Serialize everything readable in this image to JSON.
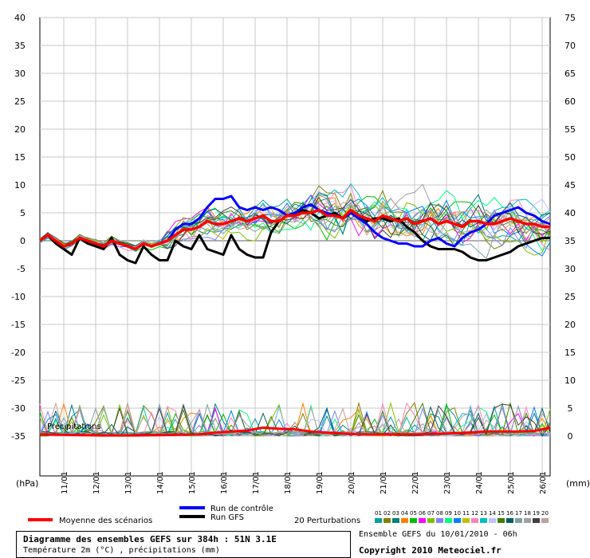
{
  "chart_data": {
    "type": "line",
    "title": "Diagramme des ensembles GEFS sur 384h : 51N 3.1E",
    "subtitle": "Température 2m (°C) , précipitations (mm)",
    "run_info": "Ensemble GEFS du 10/01/2010 - 06h",
    "copyright": "Copyright 2010 Meteociel.fr",
    "left_axis": {
      "unit_label": "(hPa)",
      "ticks": [
        "40",
        "35",
        "30",
        "25",
        "20",
        "15",
        "10",
        "5",
        "0",
        "-5",
        "-10",
        "-15",
        "-20",
        "-25",
        "-30",
        "-35"
      ],
      "ylim": [
        -40,
        40
      ]
    },
    "right_axis": {
      "unit_label": "(mm)",
      "ticks": [
        "75",
        "70",
        "65",
        "60",
        "55",
        "50",
        "45",
        "40",
        "35",
        "30",
        "25",
        "20",
        "15",
        "10",
        "5",
        "0"
      ]
    },
    "x_ticks": [
      "11/01",
      "12/01",
      "13/01",
      "14/01",
      "15/01",
      "16/01",
      "17/01",
      "18/01",
      "19/01",
      "20/01",
      "21/01",
      "22/01",
      "23/01",
      "24/01",
      "25/01",
      "26/01"
    ],
    "xlim": [
      0,
      384
    ],
    "precip_label": "Précipitations",
    "legend": {
      "mean": "Moyenne des scénarios",
      "control": "Run de contrôle",
      "gfs": "Run GFS",
      "perturbations": "20 Perturbations",
      "member_numbers": [
        "01",
        "02",
        "03",
        "04",
        "05",
        "06",
        "07",
        "08",
        "09",
        "10",
        "11",
        "12",
        "13",
        "14",
        "15",
        "16",
        "17",
        "18",
        "19",
        "20"
      ],
      "member_colors": [
        "#00a0a0",
        "#808000",
        "#008080",
        "#ff8000",
        "#00c000",
        "#ff00ff",
        "#80c000",
        "#8080ff",
        "#00ff80",
        "#0080ff",
        "#c0c000",
        "#ff80c0",
        "#00c0c0",
        "#c0c0ff",
        "#408000",
        "#006060",
        "#80a0a0",
        "#a0a0a0",
        "#404040",
        "#c0a0a0"
      ]
    },
    "series_colors": {
      "mean": "#ff0000",
      "control": "#0000ff",
      "gfs": "#000000"
    },
    "series": [
      {
        "name": "Moyenne des scénarios",
        "x": [
          0,
          6,
          12,
          18,
          24,
          30,
          36,
          42,
          48,
          54,
          60,
          66,
          72,
          78,
          84,
          90,
          96,
          102,
          108,
          114,
          120,
          126,
          132,
          138,
          144,
          150,
          156,
          162,
          168,
          174,
          180,
          186,
          192,
          198,
          204,
          210,
          216,
          222,
          228,
          234,
          240,
          246,
          252,
          258,
          264,
          270,
          276,
          282,
          288,
          294,
          300,
          306,
          312,
          318,
          324,
          330,
          336,
          342,
          348,
          354,
          360,
          366,
          372,
          378,
          384
        ],
        "values": [
          0,
          1,
          0,
          -1,
          -0.5,
          0.5,
          0,
          -0.5,
          -1,
          0,
          -0.5,
          -1,
          -1.5,
          -0.5,
          -1,
          -0.5,
          0,
          1,
          2,
          2,
          2.5,
          3.5,
          3,
          3,
          3.5,
          4,
          3.5,
          4,
          4.5,
          3.5,
          3.5,
          4.5,
          4.5,
          5,
          5,
          5.5,
          4.5,
          4.5,
          4,
          5.5,
          4.5,
          4,
          3.5,
          4.5,
          4,
          3.5,
          4,
          3,
          3.5,
          4,
          3,
          3.5,
          3,
          2.5,
          3.5,
          3.5,
          3,
          3,
          3.5,
          4,
          3.5,
          3,
          3,
          2.5,
          2.5
        ]
      },
      {
        "name": "Run de contrôle",
        "x": [
          0,
          6,
          12,
          18,
          24,
          30,
          36,
          42,
          48,
          54,
          60,
          66,
          72,
          78,
          84,
          90,
          96,
          102,
          108,
          114,
          120,
          126,
          132,
          138,
          144,
          150,
          156,
          162,
          168,
          174,
          180,
          186,
          192,
          198,
          204,
          210,
          216,
          222,
          228,
          234,
          240,
          246,
          252,
          258,
          264,
          270,
          276,
          282,
          288,
          294,
          300,
          306,
          312,
          318,
          324,
          330,
          336,
          342,
          348,
          354,
          360,
          366,
          372,
          378,
          384
        ],
        "values": [
          0,
          1,
          0,
          -1,
          -0.5,
          0.5,
          0,
          -0.5,
          -1,
          0,
          -0.5,
          -1,
          -1.5,
          -0.5,
          -1,
          -0.5,
          0,
          2,
          3,
          3,
          4,
          6,
          7.5,
          7.5,
          8,
          6,
          5.5,
          6,
          5.5,
          6,
          5.5,
          4.5,
          5,
          6,
          6.5,
          5.5,
          5,
          4.5,
          4,
          5,
          4,
          3,
          1.5,
          0.5,
          0,
          -0.5,
          -0.5,
          -1,
          -1,
          0,
          0.5,
          -0.5,
          -1,
          0.5,
          1.5,
          2,
          3,
          4.5,
          5,
          5.5,
          6,
          5,
          4.5,
          3.5,
          3
        ]
      },
      {
        "name": "Run GFS",
        "x": [
          0,
          6,
          12,
          18,
          24,
          30,
          36,
          42,
          48,
          54,
          60,
          66,
          72,
          78,
          84,
          90,
          96,
          102,
          108,
          114,
          120,
          126,
          132,
          138,
          144,
          150,
          156,
          162,
          168,
          174,
          180,
          186,
          192,
          198,
          204,
          210,
          216,
          222,
          228,
          234,
          240,
          246,
          252,
          258,
          264,
          270,
          276,
          282,
          288,
          294,
          300,
          306,
          312,
          318,
          324,
          330,
          336,
          342,
          348,
          354,
          360,
          366,
          372,
          378,
          384
        ],
        "values": [
          0,
          1,
          -0.5,
          -1.5,
          -2.5,
          0.5,
          -0.5,
          -1,
          -1.5,
          0.5,
          -2.5,
          -3.5,
          -4,
          -1,
          -2.5,
          -3.5,
          -3.5,
          0,
          -1,
          -1.5,
          1,
          -1.5,
          -2,
          -2.5,
          1,
          -1.5,
          -2.5,
          -3,
          -3,
          1.5,
          3.5,
          4.5,
          5,
          5.5,
          5,
          4,
          4.5,
          5,
          4,
          5,
          4,
          3.5,
          4,
          4,
          3.5,
          4,
          2.5,
          1.5,
          0,
          -1,
          -1.5,
          -1.5,
          -1.5,
          -2,
          -3,
          -3.5,
          -3.5,
          -3,
          -2.5,
          -2,
          -1,
          -0.5,
          0,
          0.5,
          0.5
        ]
      },
      {
        "name": "Précipitations (moyenne)",
        "x": [
          0,
          24,
          48,
          72,
          96,
          120,
          132,
          144,
          156,
          168,
          180,
          192,
          204,
          216,
          240,
          264,
          288,
          312,
          336,
          360,
          372,
          384
        ],
        "values": [
          0.3,
          0.2,
          0.1,
          0.1,
          0.2,
          0.3,
          0.6,
          0.8,
          1,
          1.5,
          1.3,
          1.2,
          0.8,
          0.6,
          0.3,
          0.3,
          0.3,
          0.5,
          0.8,
          0.8,
          0.9,
          1.5
        ]
      }
    ]
  }
}
